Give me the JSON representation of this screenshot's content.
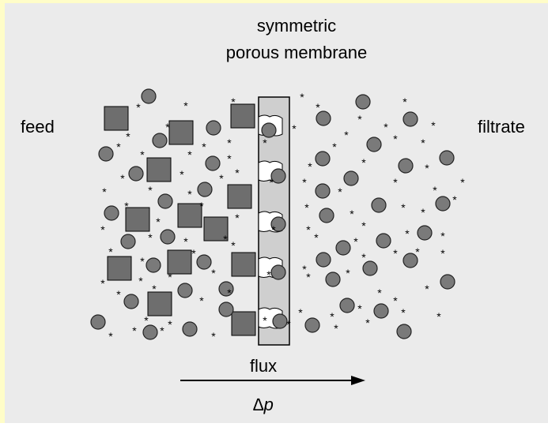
{
  "title_lines": [
    "symmetric",
    "porous membrane"
  ],
  "left_label": "feed",
  "right_label": "filtrate",
  "arrow_label": "flux",
  "pressure_label": "∆p"
}
